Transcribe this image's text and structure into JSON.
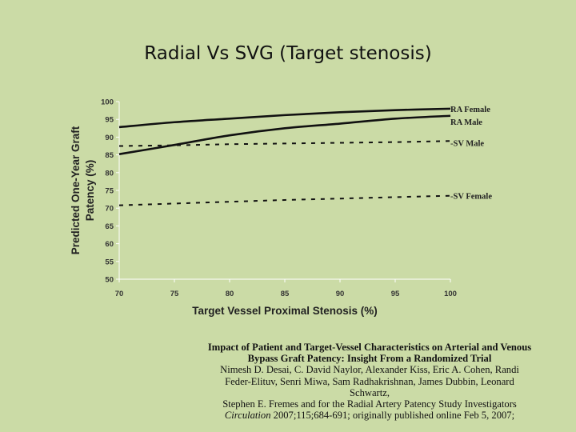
{
  "slide": {
    "title": "Radial Vs SVG (Target stenosis)"
  },
  "chart_data": {
    "type": "line",
    "title": "",
    "xlabel": "Target Vessel Proximal Stenosis (%)",
    "ylabel": "Predicted One-Year Graft Patency (%)",
    "ylabel_lines": [
      "Predicted One-Year Graft",
      "Patency (%)"
    ],
    "xlim": [
      70,
      100
    ],
    "ylim": [
      50,
      100
    ],
    "xticks": [
      70,
      75,
      80,
      85,
      90,
      95,
      100
    ],
    "yticks": [
      50,
      55,
      60,
      65,
      70,
      75,
      80,
      85,
      90,
      95,
      100
    ],
    "grid": false,
    "legend": "direct labels at right end of lines",
    "x": [
      70,
      75,
      80,
      85,
      90,
      95,
      100
    ],
    "series": [
      {
        "name": "RA Female",
        "style": "solid",
        "values": [
          92.8,
          94.2,
          95.2,
          96.2,
          97.0,
          97.6,
          98.0
        ]
      },
      {
        "name": "RA Male",
        "style": "solid",
        "values": [
          85.2,
          87.8,
          90.5,
          92.5,
          93.8,
          95.2,
          96.0
        ]
      },
      {
        "name": "SV Male",
        "style": "dashed",
        "values": [
          87.5,
          87.7,
          88.0,
          88.2,
          88.4,
          88.6,
          88.9
        ]
      },
      {
        "name": "SV Female",
        "style": "dashed",
        "values": [
          70.8,
          71.3,
          71.8,
          72.3,
          72.7,
          73.1,
          73.5
        ]
      }
    ],
    "colors": {
      "line": "#111111",
      "axis": "#ffffff",
      "background": "#cbdba6"
    }
  },
  "citation": {
    "title_line1": "Impact of Patient and Target-Vessel Characteristics on Arterial and Venous",
    "title_line2": "Bypass Graft Patency: Insight From a Randomized Trial",
    "authors_line1": "Nimesh D. Desai, C. David Naylor, Alexander Kiss, Eric A. Cohen, Randi",
    "authors_line2": "Feder-Elituv, Senri Miwa, Sam Radhakrishnan, James Dubbin, Leonard Schwartz,",
    "authors_line3": "Stephen E. Fremes and for the Radial Artery Patency Study Investigators",
    "journal": "Circulation",
    "journal_rest": " 2007;115;684-691; originally published online Feb 5, 2007;"
  }
}
